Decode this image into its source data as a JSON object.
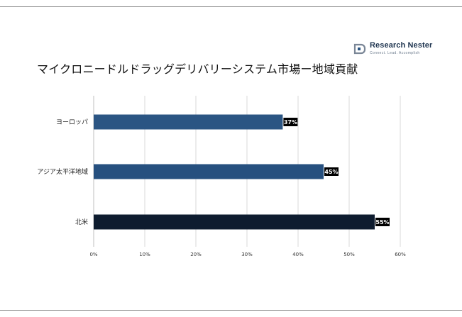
{
  "brand": {
    "name": "Research Nester",
    "tagline": "Connect. Lead. Accomplish"
  },
  "chart_data": {
    "type": "bar",
    "orientation": "horizontal",
    "title": "マイクロニードルドラッグデリバリーシステム市場ー地域貢献",
    "categories": [
      "ヨーロッパ",
      "アジア太平洋地域",
      "北米"
    ],
    "values": [
      37,
      45,
      55
    ],
    "value_labels": [
      "37%",
      "45%",
      "55%"
    ],
    "bar_colors": [
      "#2b5583",
      "#26507f",
      "#0e1c2f"
    ],
    "xlim": [
      0,
      60
    ],
    "xticks": [
      "0%",
      "10%",
      "20%",
      "30%",
      "40%",
      "50%",
      "60%"
    ],
    "xtick_values": [
      0,
      10,
      20,
      30,
      40,
      50,
      60
    ],
    "grid": true,
    "xlabel": "",
    "ylabel": ""
  }
}
